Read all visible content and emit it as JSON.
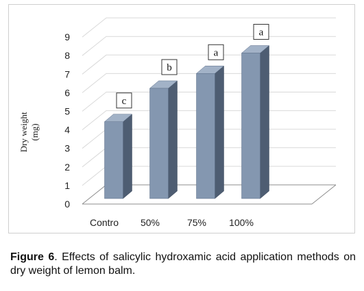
{
  "chart_data": {
    "type": "bar",
    "style": "3d-column",
    "categories": [
      "Contro",
      "50%",
      "75%",
      "100%"
    ],
    "values": [
      4.4,
      6.2,
      7.0,
      8.1
    ],
    "data_labels": [
      "c",
      "b",
      "a",
      "a"
    ],
    "ylabel_line1": "Dry weight",
    "ylabel_line2": "(mg)",
    "ylim": [
      0,
      9
    ],
    "yticks": [
      "0",
      "1",
      "2",
      "3",
      "4",
      "5",
      "6",
      "7",
      "8",
      "9"
    ],
    "grid": true,
    "legend": "none",
    "colors": {
      "bar_front": "#8497B0",
      "bar_side": "#4E5D72",
      "bar_top": "#A2B2C7",
      "grid": "#d9d9d9",
      "axis": "#8c8c8c"
    }
  },
  "caption": {
    "label": "Figure 6",
    "text": ". Effects of salicylic hydroxamic acid application methods on dry weight of lemon balm."
  }
}
